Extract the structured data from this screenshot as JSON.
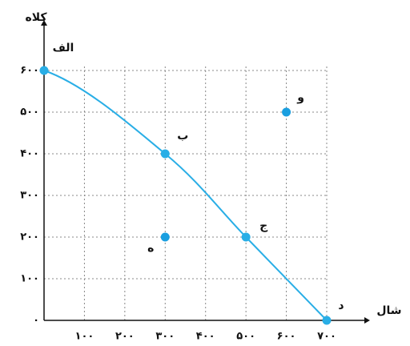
{
  "chart_data": {
    "type": "line",
    "ylabel": "کلاه",
    "xlabel": "شال",
    "xlim": [
      0,
      700
    ],
    "ylim": [
      0,
      600
    ],
    "xticks": [
      {
        "value": 100,
        "label": "۱۰۰"
      },
      {
        "value": 200,
        "label": "۲۰۰"
      },
      {
        "value": 300,
        "label": "۳۰۰"
      },
      {
        "value": 400,
        "label": "۴۰۰"
      },
      {
        "value": 500,
        "label": "۵۰۰"
      },
      {
        "value": 600,
        "label": "۶۰۰"
      },
      {
        "value": 700,
        "label": "۷۰۰"
      }
    ],
    "yticks": [
      {
        "value": 0,
        "label": "۰"
      },
      {
        "value": 100,
        "label": "۱۰۰"
      },
      {
        "value": 200,
        "label": "۲۰۰"
      },
      {
        "value": 300,
        "label": "۳۰۰"
      },
      {
        "value": 400,
        "label": "۴۰۰"
      },
      {
        "value": 500,
        "label": "۵۰۰"
      },
      {
        "value": 600,
        "label": "۶۰۰"
      }
    ],
    "grid": true,
    "series": [
      {
        "color": "#29aee6",
        "line": true,
        "x": [
          0,
          300,
          500,
          700
        ],
        "values": [
          600,
          400,
          200,
          0
        ],
        "point_labels": [
          "الف",
          "ب",
          "ج",
          "د"
        ]
      },
      {
        "color": "#1a9fe0",
        "line": false,
        "x": [
          300,
          600
        ],
        "values": [
          200,
          500
        ],
        "point_labels": [
          "ه",
          "و"
        ]
      }
    ]
  }
}
